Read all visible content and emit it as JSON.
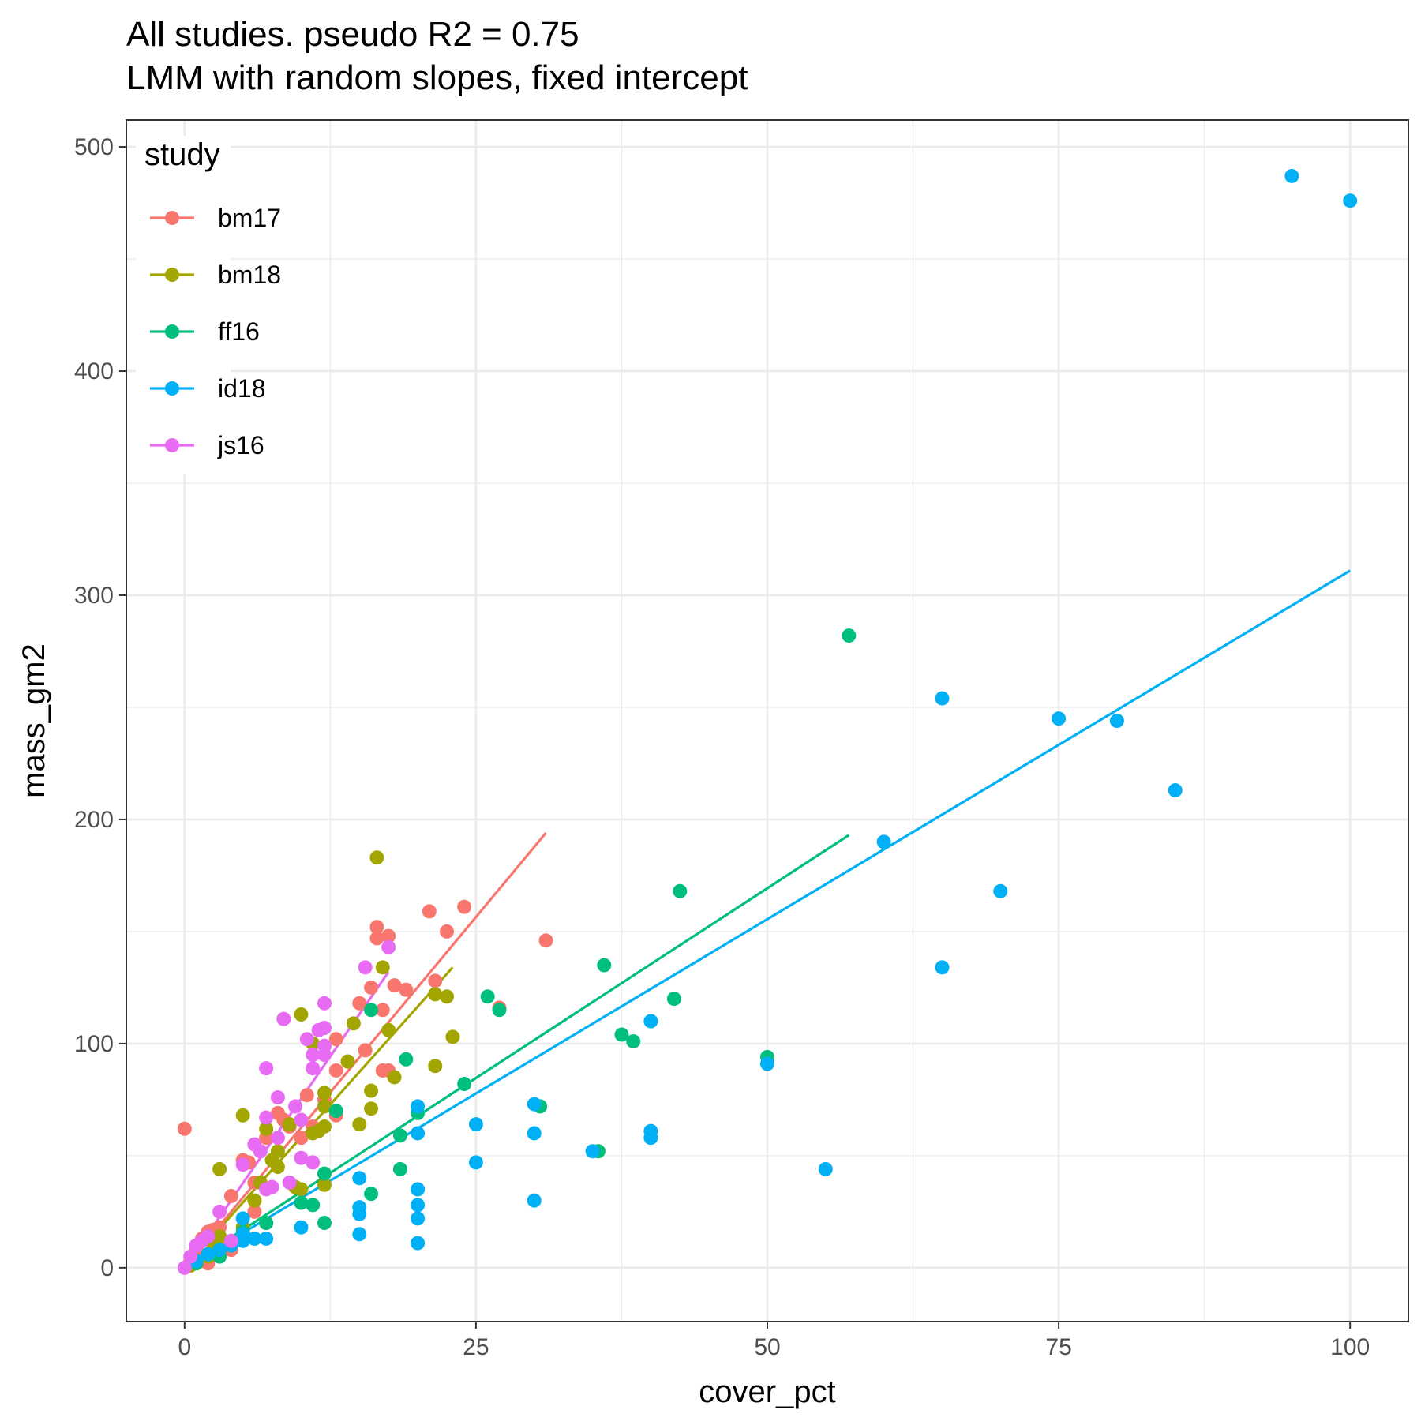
{
  "chart_data": {
    "type": "scatter",
    "title": "All studies. pseudo R2 =  0.75",
    "subtitle": "LMM with random slopes, fixed intercept",
    "xlabel": "cover_pct",
    "ylabel": "mass_gm2",
    "xlim": [
      -5,
      105
    ],
    "ylim": [
      -24,
      512
    ],
    "x_ticks": [
      0,
      25,
      50,
      75,
      100
    ],
    "x_tick_labels": [
      "0",
      "25",
      "50",
      "75",
      "100"
    ],
    "x_minor_ticks": [
      12.5,
      37.5,
      62.5,
      87.5
    ],
    "y_ticks": [
      0,
      100,
      200,
      300,
      400,
      500
    ],
    "y_tick_labels": [
      "0",
      "100",
      "200",
      "300",
      "400",
      "500"
    ],
    "y_minor_ticks": [
      50,
      150,
      250,
      350,
      450
    ],
    "grid": true,
    "legend": {
      "title": "study",
      "position": "top-left"
    },
    "series": [
      {
        "name": "bm17",
        "color": "#F8766D",
        "line": [
          [
            0,
            0
          ],
          [
            31,
            194
          ]
        ],
        "points": [
          [
            0,
            62
          ],
          [
            0.5,
            3
          ],
          [
            1,
            8
          ],
          [
            1.5,
            13
          ],
          [
            2,
            16
          ],
          [
            2,
            2
          ],
          [
            2.5,
            17
          ],
          [
            3,
            12
          ],
          [
            3,
            18
          ],
          [
            4,
            8
          ],
          [
            4,
            32
          ],
          [
            5,
            48
          ],
          [
            5.5,
            47
          ],
          [
            6,
            38
          ],
          [
            6,
            25
          ],
          [
            7,
            58
          ],
          [
            8,
            69
          ],
          [
            8.5,
            66
          ],
          [
            9,
            63
          ],
          [
            10,
            58
          ],
          [
            10.5,
            77
          ],
          [
            11,
            63
          ],
          [
            12,
            75
          ],
          [
            13,
            68
          ],
          [
            13,
            88
          ],
          [
            13,
            102
          ],
          [
            14,
            92
          ],
          [
            15,
            118
          ],
          [
            15.5,
            97
          ],
          [
            16,
            125
          ],
          [
            16.5,
            152
          ],
          [
            16.5,
            147
          ],
          [
            17,
            115
          ],
          [
            17,
            88
          ],
          [
            17.5,
            148
          ],
          [
            17.5,
            88
          ],
          [
            18,
            126
          ],
          [
            19,
            124
          ],
          [
            21,
            159
          ],
          [
            21.5,
            128
          ],
          [
            22.5,
            150
          ],
          [
            24,
            161
          ],
          [
            27,
            116
          ],
          [
            31,
            146
          ]
        ]
      },
      {
        "name": "bm18",
        "color": "#A3A500",
        "line": [
          [
            0,
            0
          ],
          [
            23,
            134
          ]
        ],
        "points": [
          [
            0.5,
            1
          ],
          [
            1,
            2
          ],
          [
            2,
            5
          ],
          [
            2.5,
            10
          ],
          [
            3,
            14
          ],
          [
            3,
            44
          ],
          [
            4,
            12
          ],
          [
            5,
            18
          ],
          [
            5,
            68
          ],
          [
            6,
            30
          ],
          [
            6.5,
            38
          ],
          [
            7,
            20
          ],
          [
            7,
            62
          ],
          [
            7.5,
            48
          ],
          [
            8,
            45
          ],
          [
            8,
            52
          ],
          [
            9,
            64
          ],
          [
            9.5,
            36
          ],
          [
            10,
            113
          ],
          [
            10,
            35
          ],
          [
            11,
            100
          ],
          [
            11,
            60
          ],
          [
            11.5,
            61
          ],
          [
            12,
            78
          ],
          [
            12,
            63
          ],
          [
            12,
            72
          ],
          [
            12,
            37
          ],
          [
            14,
            92
          ],
          [
            14.5,
            109
          ],
          [
            15,
            64
          ],
          [
            16,
            79
          ],
          [
            16,
            71
          ],
          [
            16.5,
            183
          ],
          [
            17,
            134
          ],
          [
            17.5,
            106
          ],
          [
            18,
            85
          ],
          [
            21.5,
            122
          ],
          [
            21.5,
            90
          ],
          [
            22.5,
            121
          ],
          [
            23,
            103
          ]
        ]
      },
      {
        "name": "ff16",
        "color": "#00BF7D",
        "line": [
          [
            0,
            0
          ],
          [
            57,
            193
          ]
        ],
        "points": [
          [
            1,
            2
          ],
          [
            2,
            6
          ],
          [
            3,
            5
          ],
          [
            4,
            10
          ],
          [
            5,
            16
          ],
          [
            6,
            13
          ],
          [
            7,
            20
          ],
          [
            10,
            29
          ],
          [
            11,
            28
          ],
          [
            12,
            42
          ],
          [
            12,
            20
          ],
          [
            13,
            70
          ],
          [
            16,
            33
          ],
          [
            16,
            115
          ],
          [
            18.5,
            44
          ],
          [
            18.5,
            59
          ],
          [
            19,
            93
          ],
          [
            20,
            69
          ],
          [
            24,
            82
          ],
          [
            26,
            121
          ],
          [
            27,
            115
          ],
          [
            30.5,
            72
          ],
          [
            35.5,
            52
          ],
          [
            36,
            135
          ],
          [
            37.5,
            104
          ],
          [
            38.5,
            101
          ],
          [
            42,
            120
          ],
          [
            42.5,
            168
          ],
          [
            50,
            94
          ],
          [
            57,
            282
          ]
        ]
      },
      {
        "name": "id18",
        "color": "#00B0F6",
        "line": [
          [
            0,
            0
          ],
          [
            100,
            311
          ]
        ],
        "points": [
          [
            1,
            3
          ],
          [
            2,
            6
          ],
          [
            3,
            8
          ],
          [
            4,
            10
          ],
          [
            5,
            12
          ],
          [
            5,
            15
          ],
          [
            5,
            22
          ],
          [
            6,
            13
          ],
          [
            7,
            13
          ],
          [
            10,
            18
          ],
          [
            15,
            24
          ],
          [
            15,
            27
          ],
          [
            15,
            40
          ],
          [
            15,
            15
          ],
          [
            20,
            35
          ],
          [
            20,
            28
          ],
          [
            20,
            22
          ],
          [
            20,
            11
          ],
          [
            20,
            60
          ],
          [
            20,
            72
          ],
          [
            25,
            64
          ],
          [
            25,
            47
          ],
          [
            30,
            73
          ],
          [
            30,
            60
          ],
          [
            30,
            30
          ],
          [
            35,
            52
          ],
          [
            40,
            110
          ],
          [
            40,
            61
          ],
          [
            40,
            58
          ],
          [
            50,
            91
          ],
          [
            55,
            44
          ],
          [
            60,
            190
          ],
          [
            65,
            254
          ],
          [
            65,
            134
          ],
          [
            70,
            168
          ],
          [
            75,
            245
          ],
          [
            80,
            244
          ],
          [
            85,
            213
          ],
          [
            95,
            487
          ],
          [
            100,
            476
          ]
        ]
      },
      {
        "name": "js16",
        "color": "#E76BF3",
        "line": [
          [
            0,
            0
          ],
          [
            17.5,
            132
          ]
        ],
        "points": [
          [
            0,
            0
          ],
          [
            0.5,
            5
          ],
          [
            1,
            10
          ],
          [
            1.5,
            12
          ],
          [
            2,
            14
          ],
          [
            3,
            25
          ],
          [
            4,
            12
          ],
          [
            5,
            46
          ],
          [
            6,
            55
          ],
          [
            6.5,
            52
          ],
          [
            7,
            67
          ],
          [
            7,
            89
          ],
          [
            7,
            35
          ],
          [
            7.5,
            36
          ],
          [
            8,
            76
          ],
          [
            8,
            58
          ],
          [
            8.5,
            111
          ],
          [
            9,
            38
          ],
          [
            9.5,
            72
          ],
          [
            10,
            49
          ],
          [
            10,
            66
          ],
          [
            10.5,
            102
          ],
          [
            11,
            89
          ],
          [
            11,
            95
          ],
          [
            11,
            47
          ],
          [
            11.5,
            106
          ],
          [
            12,
            107
          ],
          [
            12,
            99
          ],
          [
            12,
            118
          ],
          [
            12,
            95
          ],
          [
            15.5,
            134
          ],
          [
            17.5,
            143
          ]
        ]
      }
    ]
  }
}
